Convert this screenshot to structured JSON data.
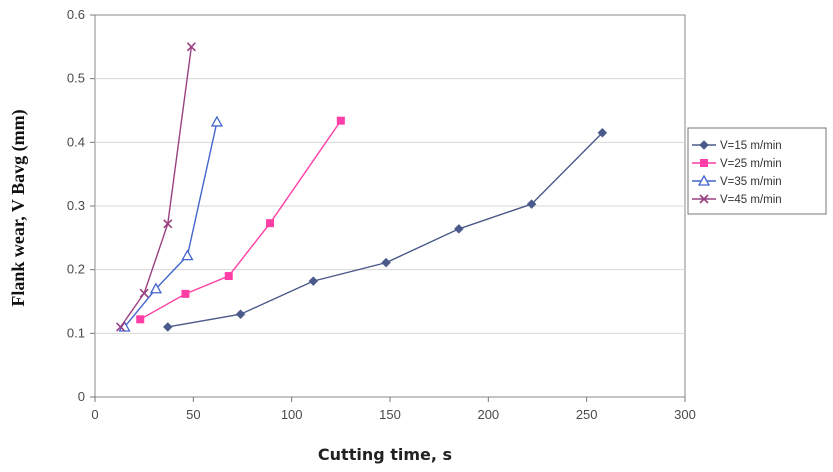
{
  "chart_data": {
    "type": "line",
    "title": "",
    "xlabel": "Cutting time, s",
    "ylabel": "Flank wear, V Bavg (mm)",
    "xlim": [
      0,
      300
    ],
    "ylim": [
      0,
      0.6
    ],
    "xticks": [
      0,
      50,
      100,
      150,
      200,
      250,
      300
    ],
    "yticks": [
      0,
      0.1,
      0.2,
      0.3,
      0.4,
      0.5,
      0.6
    ],
    "xtick_labels": [
      "0",
      "50",
      "100",
      "150",
      "200",
      "250",
      "300"
    ],
    "ytick_labels": [
      "0",
      "0.1",
      "0.2",
      "0.3",
      "0.4",
      "0.5",
      "0.6"
    ],
    "grid": "horizontal",
    "legend_position": "right",
    "series": [
      {
        "name": "V=15 m/min",
        "color": "#4a5a8a",
        "marker": "diamond",
        "x": [
          37,
          74,
          111,
          148,
          185,
          222,
          258
        ],
        "y": [
          0.11,
          0.13,
          0.182,
          0.211,
          0.264,
          0.303,
          0.415
        ]
      },
      {
        "name": "V=25 m/min",
        "color": "#ff3fa6",
        "marker": "square",
        "x": [
          23,
          46,
          68,
          89,
          125
        ],
        "y": [
          0.122,
          0.162,
          0.19,
          0.273,
          0.434
        ]
      },
      {
        "name": "V=35 m/min",
        "color": "#4466cc",
        "marker": "triangle",
        "x": [
          15,
          31,
          47,
          62
        ],
        "y": [
          0.11,
          0.17,
          0.222,
          0.432
        ]
      },
      {
        "name": "V=45 m/min",
        "color": "#9a4080",
        "marker": "x",
        "x": [
          13,
          25,
          37,
          49
        ],
        "y": [
          0.11,
          0.163,
          0.272,
          0.55
        ]
      }
    ]
  }
}
